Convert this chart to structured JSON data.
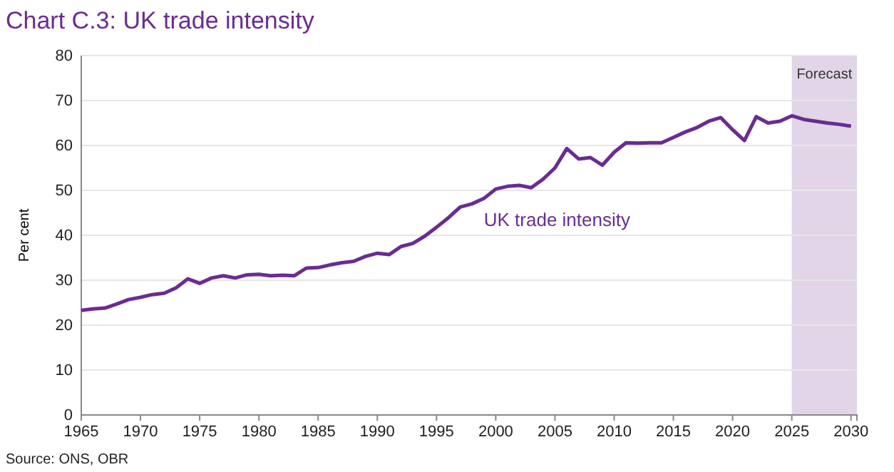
{
  "chart_data": {
    "type": "line",
    "title": "Chart C.3: UK trade intensity",
    "ylabel": "Per cent",
    "x": [
      1965,
      1966,
      1967,
      1968,
      1969,
      1970,
      1971,
      1972,
      1973,
      1974,
      1975,
      1976,
      1977,
      1978,
      1979,
      1980,
      1981,
      1982,
      1983,
      1984,
      1985,
      1986,
      1987,
      1988,
      1989,
      1990,
      1991,
      1992,
      1993,
      1994,
      1995,
      1996,
      1997,
      1998,
      1999,
      2000,
      2001,
      2002,
      2003,
      2004,
      2005,
      2006,
      2007,
      2008,
      2009,
      2010,
      2011,
      2012,
      2013,
      2014,
      2015,
      2016,
      2017,
      2018,
      2019,
      2020,
      2021,
      2022,
      2023,
      2024,
      2025,
      2026,
      2027,
      2028,
      2029,
      2030
    ],
    "series": [
      {
        "name": "UK trade intensity",
        "color": "#6a2c91",
        "values": [
          23.3,
          23.6,
          23.8,
          24.7,
          25.7,
          26.2,
          26.8,
          27.1,
          28.3,
          30.3,
          29.3,
          30.5,
          31.0,
          30.5,
          31.2,
          31.3,
          31.0,
          31.1,
          31.0,
          32.7,
          32.8,
          33.4,
          33.9,
          34.2,
          35.3,
          36.0,
          35.7,
          37.5,
          38.2,
          39.8,
          41.8,
          43.9,
          46.3,
          47.0,
          48.2,
          50.3,
          50.9,
          51.1,
          50.6,
          52.5,
          55.0,
          59.3,
          57.0,
          57.3,
          55.6,
          58.5,
          60.6,
          60.5,
          60.6,
          60.6,
          61.8,
          63.0,
          64.0,
          65.4,
          66.2,
          63.5,
          61.1,
          66.4,
          65.0,
          65.4,
          66.6,
          65.8,
          65.4,
          65.0,
          64.7,
          64.3
        ]
      }
    ],
    "xlim": [
      1965,
      2030.5
    ],
    "xticks": [
      1965,
      1970,
      1975,
      1980,
      1985,
      1990,
      1995,
      2000,
      2005,
      2010,
      2015,
      2020,
      2025,
      2030
    ],
    "ylim": [
      0,
      80
    ],
    "yticks": [
      0,
      10,
      20,
      30,
      40,
      50,
      60,
      70,
      80
    ],
    "grid": "y",
    "bands": [
      {
        "axis": "x",
        "from": 2025,
        "to": 2030.5,
        "label": "Forecast",
        "color": "#e1d5e7"
      }
    ],
    "annotations": [
      "Source: ONS, OBR"
    ],
    "legend": false
  }
}
